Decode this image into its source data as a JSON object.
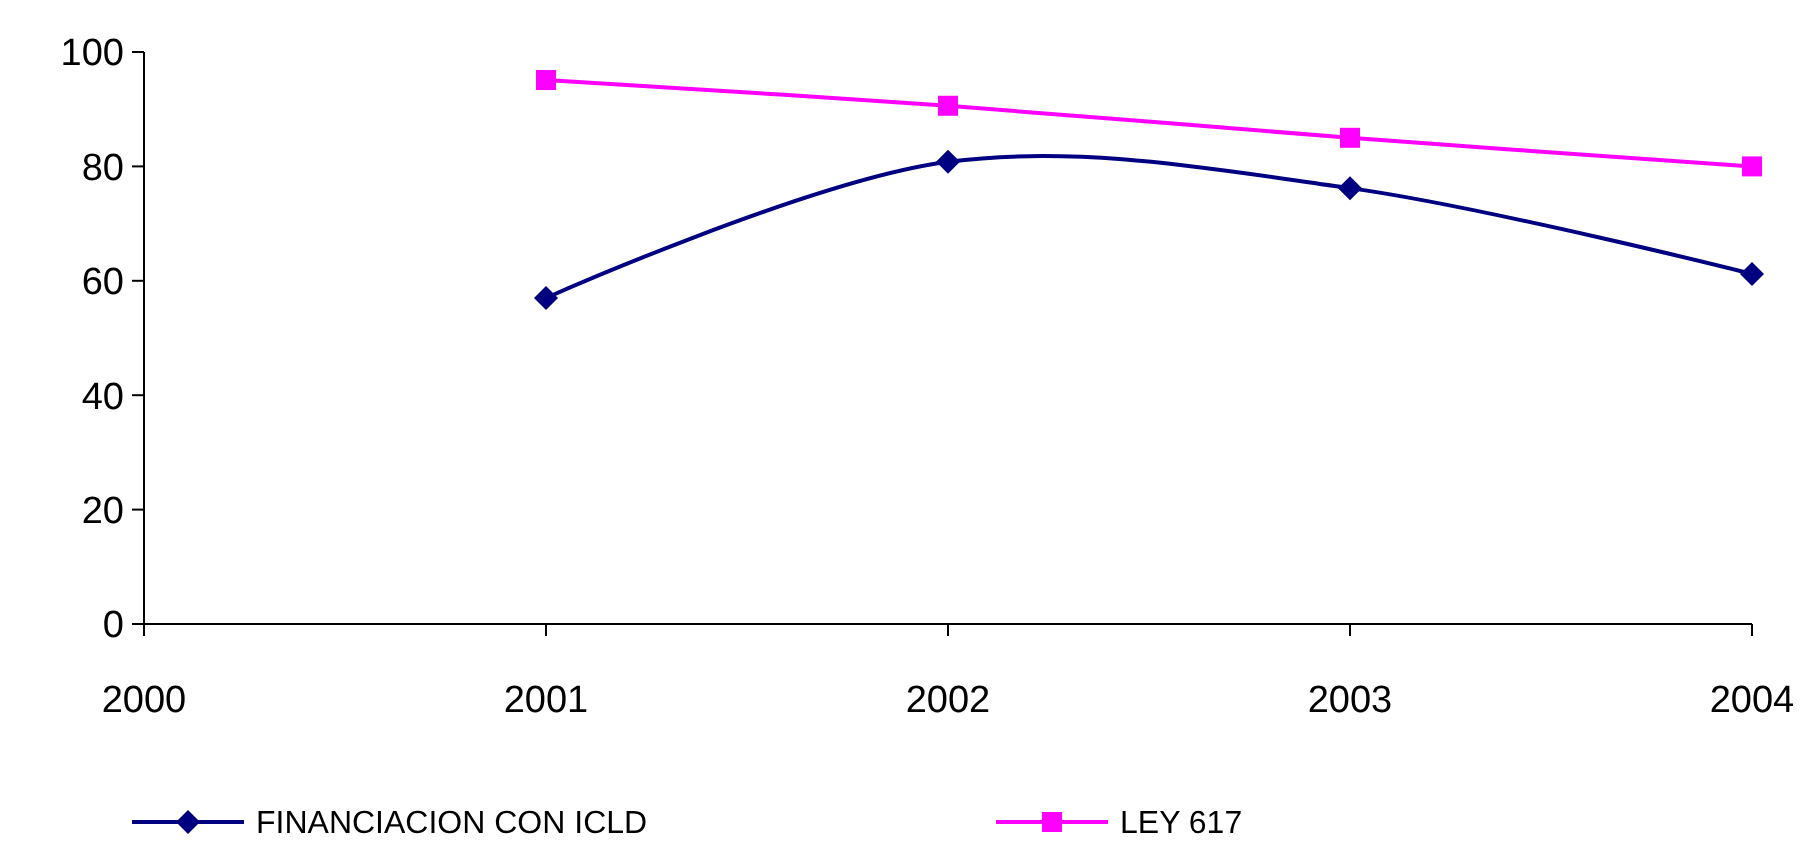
{
  "chart_data": {
    "type": "line",
    "x": [
      2001,
      2002,
      2003,
      2004
    ],
    "xlim": [
      2000,
      2004
    ],
    "xticks": [
      2000,
      2001,
      2002,
      2003,
      2004
    ],
    "ylim": [
      0,
      100
    ],
    "yticks": [
      0,
      20,
      40,
      60,
      80,
      100
    ],
    "grid": false,
    "legend": "bottom",
    "series": [
      {
        "name": "FINANCIACION CON ICLD",
        "color": "#000080",
        "values": [
          57,
          80.8,
          76.2,
          61.2
        ],
        "marker": "diamond"
      },
      {
        "name": "LEY 617",
        "color": "#ff00ff",
        "values": [
          95.1,
          90.6,
          85,
          80
        ],
        "marker": "square"
      }
    ]
  }
}
